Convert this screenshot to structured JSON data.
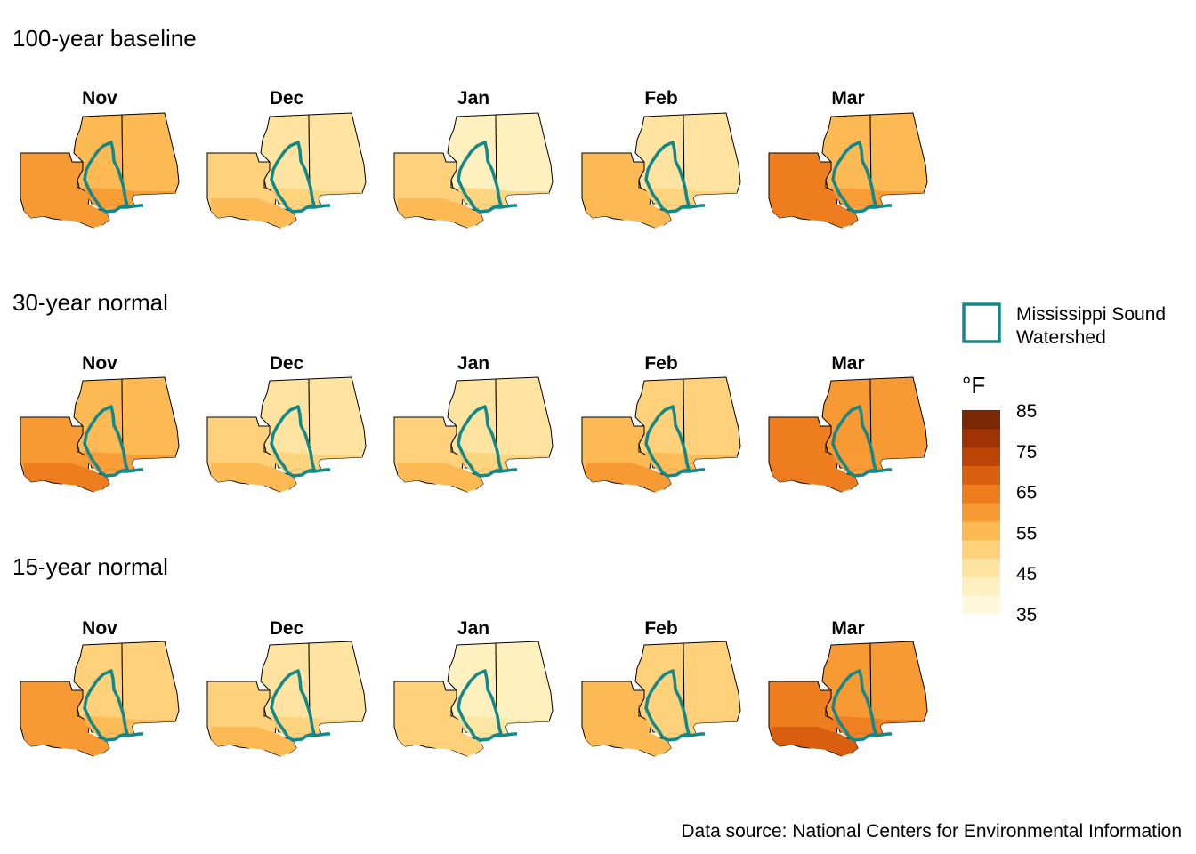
{
  "rows": [
    {
      "title": "100-year baseline",
      "months": [
        {
          "label": "Nov",
          "west": 60,
          "north": 55,
          "east": 56,
          "south": 62
        },
        {
          "label": "Dec",
          "west": 53,
          "north": 46,
          "east": 46,
          "south": 56
        },
        {
          "label": "Jan",
          "west": 51,
          "north": 44,
          "east": 43,
          "south": 54
        },
        {
          "label": "Feb",
          "west": 54,
          "north": 47,
          "east": 47,
          "south": 57
        },
        {
          "label": "Mar",
          "west": 63,
          "north": 57,
          "east": 57,
          "south": 65
        }
      ]
    },
    {
      "title": "30-year normal",
      "months": [
        {
          "label": "Nov",
          "west": 60,
          "north": 55,
          "east": 55,
          "south": 63
        },
        {
          "label": "Dec",
          "west": 52,
          "north": 47,
          "east": 47,
          "south": 55
        },
        {
          "label": "Jan",
          "west": 51,
          "north": 45,
          "east": 45,
          "south": 54
        },
        {
          "label": "Feb",
          "west": 55,
          "north": 49,
          "east": 49,
          "south": 58
        },
        {
          "label": "Mar",
          "west": 63,
          "north": 58,
          "east": 58,
          "south": 66
        }
      ]
    },
    {
      "title": "15-year normal",
      "months": [
        {
          "label": "Nov",
          "west": 59,
          "north": 53,
          "east": 53,
          "south": 62
        },
        {
          "label": "Dec",
          "west": 52,
          "north": 48,
          "east": 48,
          "south": 55
        },
        {
          "label": "Jan",
          "west": 50,
          "north": 44,
          "east": 44,
          "south": 53
        },
        {
          "label": "Feb",
          "west": 54,
          "north": 49,
          "east": 49,
          "south": 57
        },
        {
          "label": "Mar",
          "west": 63,
          "north": 59,
          "east": 59,
          "south": 67
        }
      ]
    }
  ],
  "legend": {
    "watershed_label_line1": "Mississippi Sound",
    "watershed_label_line2": "Watershed",
    "watershed_color": "#13888a",
    "unit": "°F",
    "scale_min": 35,
    "scale_max": 85,
    "ticks": [
      "85",
      "75",
      "65",
      "55",
      "45",
      "35"
    ],
    "colors": [
      "#fff8dc",
      "#fff1bf",
      "#fee4a0",
      "#fed17a",
      "#fdb954",
      "#f89a34",
      "#ee7d1f",
      "#da5e0f",
      "#bd4407",
      "#9e3305",
      "#7a2805"
    ]
  },
  "caption": "Data source: National Centers for Environmental Information"
}
